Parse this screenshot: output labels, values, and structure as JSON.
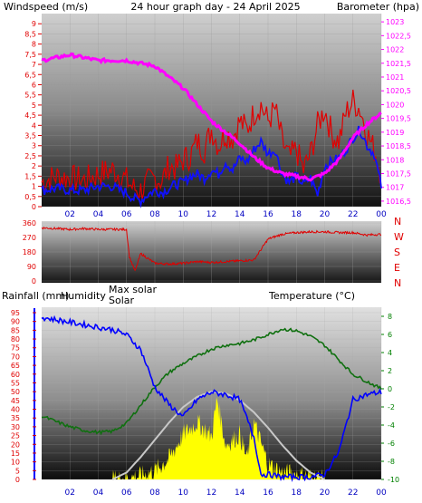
{
  "header": {
    "left_label": "Windspeed (m/s)",
    "center_label": "24 hour graph day - 24 April 2025",
    "right_label": "Barometer (hpa)"
  },
  "colors": {
    "wind_max": "#e00000",
    "wind_avg": "#1010ff",
    "pressure": "#ff00ff",
    "direction": "#e00000",
    "humidity": "#0000ff",
    "temperature": "#107010",
    "solar": "#ffff00",
    "max_solar": "#c8c8c8",
    "rain_axis": "#e00000",
    "temp_axis": "#008000",
    "humidity_axis": "#0000ff",
    "title": "#ffff00"
  },
  "chart_data": [
    {
      "type": "line",
      "title": "24 hour graph day - 24 April 2025",
      "ylabel": "Windspeed (m/s)",
      "y2label": "Barometer (hpa)",
      "ylim": [
        0,
        9.5
      ],
      "y2lim": [
        1016.3,
        1023.3
      ],
      "yticks": [
        "0",
        "0,5",
        "1",
        "1,5",
        "2",
        "2,5",
        "3",
        "3,5",
        "4",
        "4,5",
        "5",
        "5,5",
        "6",
        "6,5",
        "7",
        "7,5",
        "8",
        "8,5",
        "9"
      ],
      "y2ticks": [
        "1016,5",
        "1017",
        "1017,5",
        "1018",
        "1018,5",
        "1019",
        "1019,5",
        "1020",
        "1020,5",
        "1021",
        "1021,5",
        "1022",
        "1022,5",
        "1023"
      ],
      "xticks": [
        "02",
        "04",
        "06",
        "08",
        "10",
        "12",
        "14",
        "16",
        "18",
        "20",
        "22",
        "00"
      ],
      "series": [
        {
          "name": "Windspeed (m/s)",
          "axis": "left",
          "x": [
            0,
            1,
            2,
            3,
            4,
            5,
            5.5,
            6,
            6.5,
            7,
            7.5,
            8,
            8.5,
            9,
            9.5,
            10,
            10.5,
            11,
            11.5,
            12,
            12.5,
            13,
            13.5,
            14,
            14.5,
            15,
            15.5,
            16,
            16.5,
            17,
            17.5,
            18,
            18.5,
            19,
            19.5,
            20,
            20.5,
            21,
            21.5,
            22,
            22.5,
            23,
            23.5,
            24
          ],
          "y": [
            1.2,
            1.5,
            1.4,
            1.3,
            1.6,
            1.8,
            1.6,
            1.3,
            0.9,
            0.8,
            1.2,
            1.4,
            1.3,
            2.0,
            1.9,
            2.3,
            2.5,
            3.2,
            2.8,
            3.8,
            3.0,
            3.6,
            3.4,
            4.2,
            3.8,
            4.6,
            5.0,
            4.2,
            4.8,
            3.2,
            2.4,
            2.8,
            1.8,
            2.6,
            4.0,
            4.8,
            3.6,
            3.2,
            4.6,
            5.2,
            4.8,
            3.6,
            2.8,
            1.6
          ]
        },
        {
          "name": "Windspeed avg (m/s)",
          "axis": "left",
          "x": [
            0,
            1,
            2,
            3,
            4,
            5,
            5.5,
            6,
            6.5,
            7,
            7.5,
            8,
            8.5,
            9,
            9.5,
            10,
            10.5,
            11,
            11.5,
            12,
            12.5,
            13,
            13.5,
            14,
            14.5,
            15,
            15.5,
            16,
            16.5,
            17,
            17.5,
            18,
            18.5,
            19,
            19.5,
            20,
            20.5,
            21,
            21.5,
            22,
            22.5,
            23,
            23.5,
            24
          ],
          "y": [
            0.8,
            0.9,
            0.8,
            0.8,
            1.0,
            1.0,
            0.8,
            0.7,
            0.4,
            0.3,
            0.6,
            0.8,
            0.7,
            0.9,
            1.1,
            1.2,
            1.5,
            1.6,
            1.4,
            1.8,
            1.6,
            2.2,
            1.8,
            2.4,
            2.2,
            2.8,
            3.2,
            2.6,
            2.8,
            1.6,
            1.2,
            1.5,
            1.1,
            1.4,
            0.6,
            2.0,
            2.2,
            2.4,
            2.8,
            3.4,
            3.8,
            3.0,
            2.6,
            1.0
          ]
        },
        {
          "name": "Barometer (hpa)",
          "axis": "right",
          "x": [
            0,
            1,
            2,
            3,
            4,
            5,
            6,
            7,
            8,
            9,
            10,
            11,
            12,
            13,
            14,
            15,
            16,
            17,
            18,
            19,
            20,
            21,
            22,
            23,
            24
          ],
          "y": [
            1021.6,
            1021.7,
            1021.8,
            1021.7,
            1021.6,
            1021.6,
            1021.6,
            1021.5,
            1021.4,
            1021.0,
            1020.6,
            1020.0,
            1019.4,
            1019.0,
            1018.6,
            1018.1,
            1017.7,
            1017.5,
            1017.4,
            1017.3,
            1017.5,
            1018.0,
            1018.8,
            1019.3,
            1019.7
          ]
        }
      ]
    },
    {
      "type": "line",
      "ylabel": "",
      "ylim": [
        0,
        360
      ],
      "yticks": [
        "0",
        "90",
        "180",
        "270",
        "360"
      ],
      "side_labels": [
        "N",
        "W",
        "S",
        "E",
        "N"
      ],
      "series": [
        {
          "name": "Wind direction",
          "x": [
            0,
            1,
            2,
            3,
            4,
            5,
            6,
            6.2,
            6.6,
            7,
            8,
            9,
            10,
            11,
            12,
            13,
            14,
            15,
            16,
            17,
            18,
            19,
            20,
            21,
            22,
            23,
            24
          ],
          "y": [
            330,
            325,
            320,
            325,
            320,
            320,
            320,
            150,
            60,
            170,
            110,
            105,
            110,
            120,
            115,
            120,
            125,
            130,
            260,
            290,
            300,
            305,
            305,
            300,
            300,
            285,
            290
          ]
        }
      ]
    },
    {
      "type": "line",
      "labels": {
        "rainfall": "Rainfall (mm)",
        "humidity": "Humidity",
        "max_solar": "Max solar",
        "solar": "Solar",
        "temperature": "Temperature (°C)"
      },
      "rain_yticks": [
        "0",
        "5",
        "10",
        "15",
        "20",
        "25",
        "30",
        "35",
        "40",
        "45",
        "50",
        "55",
        "60",
        "65",
        "70",
        "75",
        "80",
        "85",
        "90",
        "95"
      ],
      "temp_yticks": [
        "-10",
        "-8",
        "-6",
        "-4",
        "-2",
        "0",
        "2",
        "4",
        "6",
        "8"
      ],
      "humidity_ylim": [
        28,
        97
      ],
      "temperature_ylim": [
        -10,
        9
      ],
      "xticks": [
        "02",
        "04",
        "06",
        "08",
        "10",
        "12",
        "14",
        "16",
        "18",
        "20",
        "22",
        "00"
      ],
      "series": [
        {
          "name": "Humidity",
          "x": [
            0,
            1,
            2,
            3,
            4,
            5,
            6,
            7,
            8,
            9,
            10,
            11,
            12,
            13,
            14,
            15,
            15.5,
            16,
            17,
            18,
            19,
            20,
            21,
            22,
            23,
            24
          ],
          "y": [
            93,
            92,
            91,
            90,
            89,
            88,
            86,
            80,
            65,
            58,
            53,
            60,
            63,
            62,
            60,
            45,
            30,
            30,
            29,
            29,
            29,
            30,
            39,
            60,
            62,
            63
          ]
        },
        {
          "name": "Temperature (°C)",
          "x": [
            0,
            1,
            2,
            3,
            4,
            5,
            6,
            7,
            8,
            9,
            10,
            11,
            12,
            13,
            14,
            15,
            16,
            17,
            18,
            19,
            20,
            21,
            22,
            23,
            24
          ],
          "y": [
            -3.0,
            -3.6,
            -4.2,
            -4.6,
            -4.8,
            -4.7,
            -3.8,
            -1.8,
            0.2,
            1.8,
            2.8,
            3.6,
            4.4,
            4.8,
            5.0,
            5.4,
            6.0,
            6.6,
            6.4,
            5.8,
            4.8,
            3.2,
            1.6,
            0.8,
            0.0
          ]
        },
        {
          "name": "Max solar",
          "x": [
            5,
            6,
            7,
            8,
            9,
            10,
            11,
            12,
            13,
            14,
            15,
            16,
            17,
            18,
            19,
            20
          ],
          "y": [
            0,
            40,
            130,
            230,
            330,
            420,
            480,
            510,
            500,
            460,
            390,
            300,
            200,
            110,
            40,
            0
          ]
        },
        {
          "name": "Solar",
          "x": [
            5,
            6,
            7,
            8,
            9,
            10,
            11,
            12,
            12.4,
            13,
            14,
            14.5,
            15,
            16,
            17,
            18,
            19,
            20
          ],
          "y": [
            0,
            5,
            20,
            50,
            120,
            260,
            330,
            250,
            470,
            200,
            260,
            120,
            330,
            90,
            40,
            30,
            15,
            0
          ]
        }
      ]
    }
  ]
}
